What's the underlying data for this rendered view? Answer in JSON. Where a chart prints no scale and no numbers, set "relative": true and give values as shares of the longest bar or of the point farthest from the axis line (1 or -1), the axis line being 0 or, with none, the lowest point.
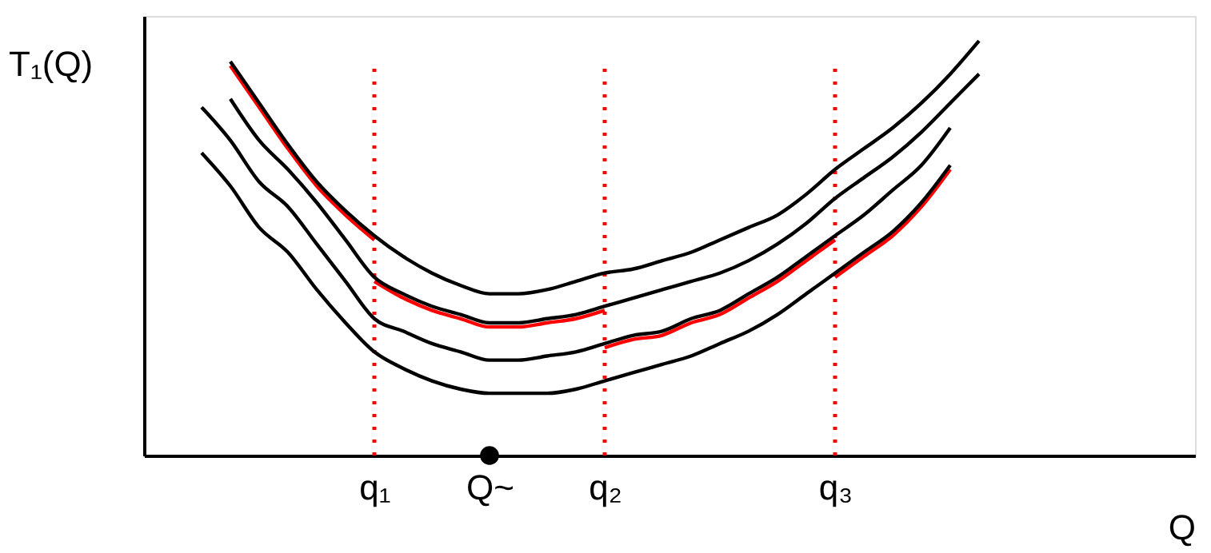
{
  "chart_data": {
    "type": "line",
    "relative": true,
    "xlabel": "Q",
    "ylabel": "T₁(Q)",
    "categories": [
      null,
      null,
      null,
      null,
      null,
      null,
      null,
      null,
      "q₁",
      null,
      null,
      null,
      "Q~",
      null,
      null,
      null,
      "q₂",
      null,
      null,
      null,
      null,
      null,
      null,
      null,
      "q₃",
      null,
      null,
      null,
      null,
      null,
      null,
      null,
      null,
      null,
      null,
      null,
      null
    ],
    "series": [
      {
        "color": "#000000",
        "values": [
          null,
          null,
          null,
          0.95,
          0.85,
          0.75,
          0.66,
          0.59,
          0.53,
          0.48,
          0.44,
          0.41,
          0.39,
          0.39,
          0.4,
          0.42,
          0.44,
          0.45,
          0.47,
          0.49,
          0.52,
          0.55,
          0.58,
          0.63,
          0.69,
          0.74,
          0.79,
          0.85,
          0.92,
          1.0,
          null,
          null,
          null,
          null,
          null,
          null,
          null
        ]
      },
      {
        "color": "#000000",
        "values": [
          null,
          null,
          null,
          0.86,
          0.76,
          0.69,
          0.61,
          0.52,
          0.43,
          0.39,
          0.36,
          0.34,
          0.32,
          0.32,
          0.33,
          0.34,
          0.36,
          0.38,
          0.4,
          0.42,
          0.44,
          0.47,
          0.51,
          0.56,
          0.62,
          0.67,
          0.72,
          0.78,
          0.85,
          0.92,
          null,
          null,
          null,
          null,
          null,
          null,
          null
        ]
      },
      {
        "color": "#000000",
        "values": [
          null,
          null,
          0.84,
          0.76,
          0.66,
          0.6,
          0.51,
          0.42,
          0.33,
          0.3,
          0.27,
          0.25,
          0.23,
          0.23,
          0.24,
          0.25,
          0.27,
          0.29,
          0.3,
          0.33,
          0.35,
          0.39,
          0.43,
          0.48,
          0.53,
          0.58,
          0.64,
          0.7,
          0.79,
          null,
          null,
          null,
          null,
          null,
          null,
          null,
          null
        ]
      },
      {
        "color": "#000000",
        "values": [
          null,
          null,
          0.73,
          0.65,
          0.55,
          0.49,
          0.4,
          0.32,
          0.25,
          0.21,
          0.18,
          0.16,
          0.15,
          0.15,
          0.15,
          0.16,
          0.18,
          0.2,
          0.22,
          0.24,
          0.27,
          0.3,
          0.34,
          0.39,
          0.44,
          0.49,
          0.54,
          0.61,
          0.7,
          null,
          null,
          null,
          null,
          null,
          null,
          null,
          null
        ]
      },
      {
        "color": "#ff0000",
        "values": [
          null,
          null,
          null,
          0.94,
          0.84,
          0.74,
          0.65,
          0.58,
          0.52,
          null,
          null,
          null,
          null,
          null,
          null,
          null,
          null,
          null,
          null,
          null,
          null,
          null,
          null,
          null,
          null,
          null,
          null,
          null,
          null,
          null,
          null,
          null,
          null,
          null,
          null,
          null,
          null
        ]
      },
      {
        "color": "#ff0000",
        "values": [
          null,
          null,
          null,
          null,
          null,
          null,
          null,
          null,
          0.42,
          0.38,
          0.35,
          0.33,
          0.31,
          0.31,
          0.32,
          0.33,
          0.35,
          null,
          null,
          null,
          null,
          null,
          null,
          null,
          null,
          null,
          null,
          null,
          null,
          null,
          null,
          null,
          null,
          null,
          null,
          null,
          null
        ]
      },
      {
        "color": "#ff0000",
        "values": [
          null,
          null,
          null,
          null,
          null,
          null,
          null,
          null,
          null,
          null,
          null,
          null,
          null,
          null,
          null,
          null,
          0.26,
          0.28,
          0.29,
          0.32,
          0.34,
          0.38,
          0.42,
          0.47,
          0.52,
          null,
          null,
          null,
          null,
          null,
          null,
          null,
          null,
          null,
          null,
          null,
          null
        ]
      },
      {
        "color": "#ff0000",
        "values": [
          null,
          null,
          null,
          null,
          null,
          null,
          null,
          null,
          null,
          null,
          null,
          null,
          null,
          null,
          null,
          null,
          null,
          null,
          null,
          null,
          null,
          null,
          null,
          null,
          0.43,
          0.48,
          0.53,
          0.6,
          0.69,
          null,
          null,
          null,
          null,
          null,
          null,
          null,
          null
        ]
      },
      {
        "type": "scatter",
        "color": "#000000",
        "marker": "circle",
        "values": [
          null,
          null,
          null,
          null,
          null,
          null,
          null,
          null,
          null,
          null,
          null,
          null,
          0,
          null,
          null,
          null,
          null,
          null,
          null,
          null,
          null,
          null,
          null,
          null,
          null,
          null,
          null,
          null,
          null,
          null,
          null,
          null,
          null,
          null,
          null,
          null,
          null
        ]
      }
    ],
    "ref_lines": [
      {
        "axis": "x",
        "value": "q₁",
        "color": "#ff0000",
        "line_style": "dotted"
      },
      {
        "axis": "x",
        "value": "q₂",
        "color": "#ff0000",
        "line_style": "dotted"
      },
      {
        "axis": "x",
        "value": "q₃",
        "color": "#ff0000",
        "line_style": "dotted"
      }
    ]
  }
}
